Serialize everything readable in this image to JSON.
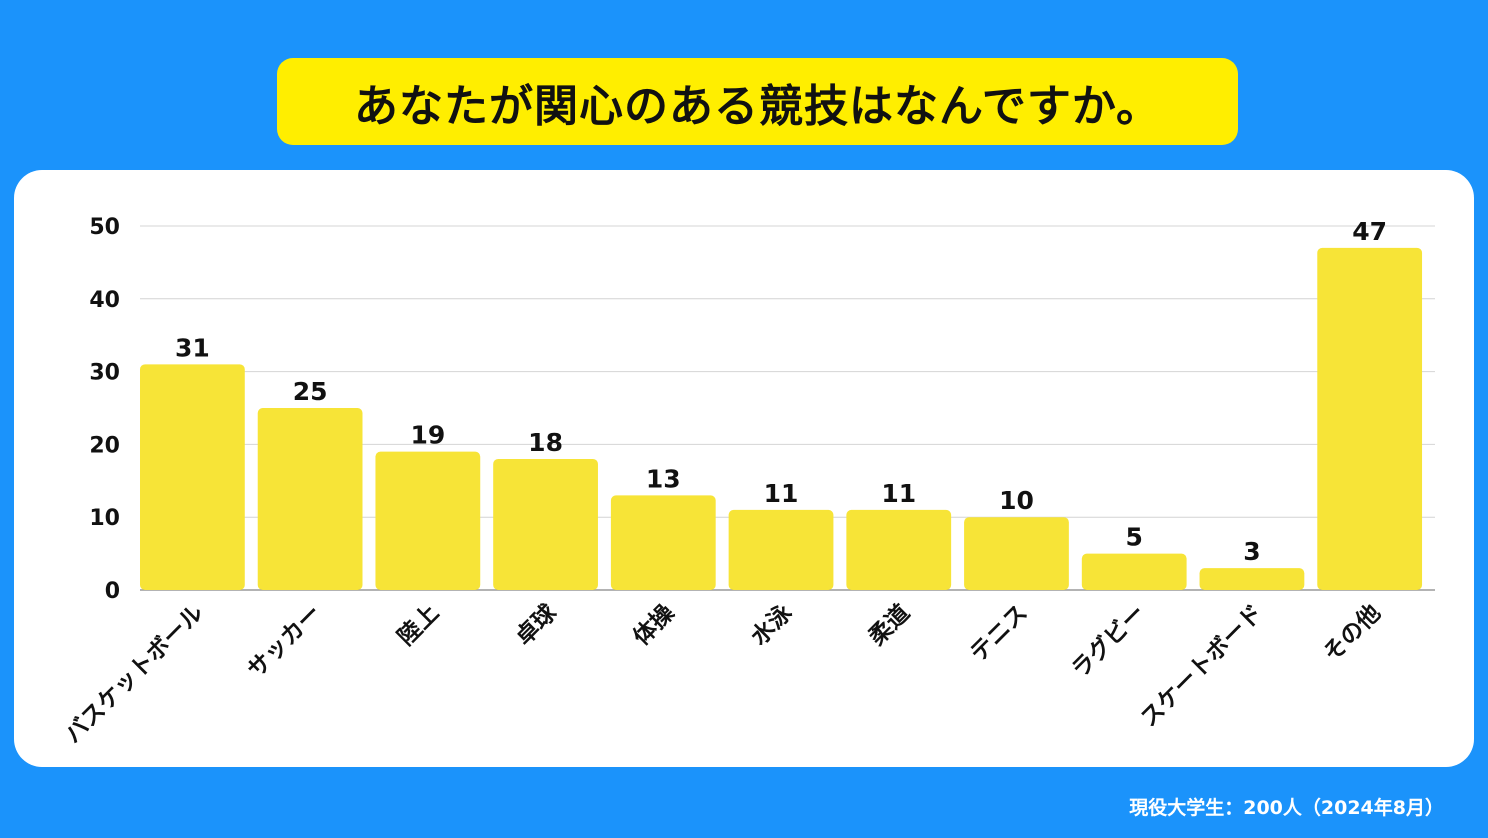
{
  "title": "あなたが関心のある競技はなんですか。",
  "footer": "現役大学生：200人（2024年8月）",
  "chart_data": {
    "type": "bar",
    "title": "あなたが関心のある競技はなんですか。",
    "categories": [
      "バスケットボール",
      "サッカー",
      "陸上",
      "卓球",
      "体操",
      "水泳",
      "柔道",
      "テニス",
      "ラグビー",
      "スケートボード",
      "その他"
    ],
    "values": [
      31,
      25,
      19,
      18,
      13,
      11,
      11,
      10,
      5,
      3,
      47
    ],
    "yticks": [
      0,
      10,
      20,
      30,
      40,
      50
    ],
    "ylim": [
      0,
      50
    ],
    "xlabel": "",
    "ylabel": "",
    "grid": true,
    "bar_color": "#f7e437"
  }
}
